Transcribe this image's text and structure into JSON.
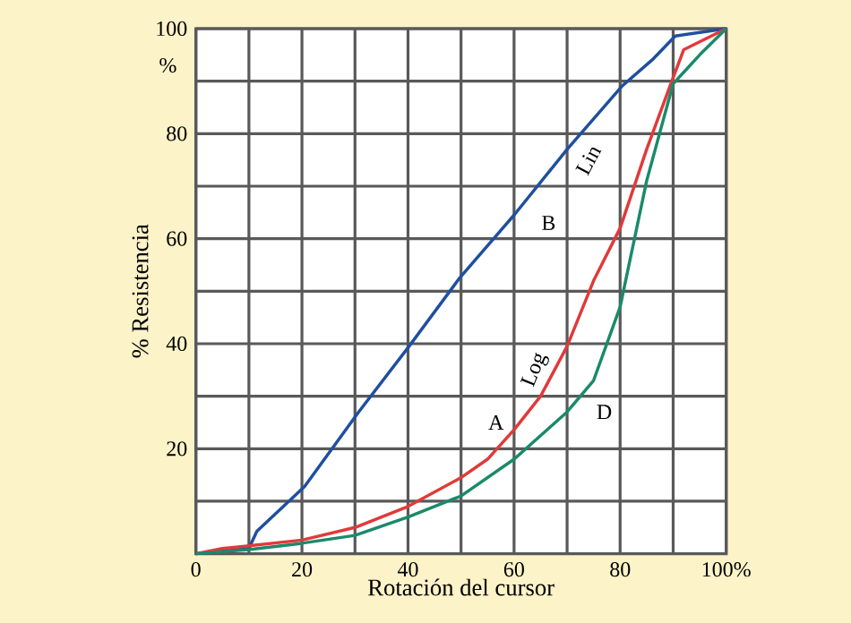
{
  "chart_data": {
    "type": "line",
    "xlabel": "Rotación del cursor",
    "ylabel": "% Resistencia",
    "xlim": [
      0,
      100
    ],
    "ylim": [
      0,
      100
    ],
    "xticks": [
      0,
      {
        "value": 10,
        "label": null
      },
      20,
      {
        "value": 30,
        "label": null
      },
      40,
      {
        "value": 50,
        "label": null
      },
      60,
      {
        "value": 70,
        "label": null
      },
      80,
      {
        "value": 90,
        "label": null
      },
      {
        "value": 100,
        "label": "100%"
      }
    ],
    "yticks": [
      {
        "value": 10,
        "label": null
      },
      20,
      {
        "value": 30,
        "label": null
      },
      40,
      {
        "value": 50,
        "label": null
      },
      60,
      {
        "value": 70,
        "label": null
      },
      80,
      {
        "value": 90,
        "label": null
      },
      100
    ],
    "grid": true,
    "marker": "none",
    "line_style": "solid",
    "legend": false,
    "series": [
      {
        "color": "#1f4f9f",
        "x": [
          0,
          10,
          11.5,
          20.5,
          30.7,
          40.2,
          49.8,
          60,
          70,
          80.3,
          86,
          90.4,
          100
        ],
        "values": [
          0,
          1,
          4.3,
          12.8,
          27,
          39.5,
          52.6,
          64.5,
          77,
          89,
          94,
          98.6,
          100
        ]
      },
      {
        "color": "#e03a3a",
        "x": [
          0,
          5,
          10,
          20,
          30,
          40,
          50,
          55,
          60,
          65,
          70,
          75,
          80,
          85,
          90,
          92,
          100
        ],
        "values": [
          0,
          1,
          1.5,
          2.6,
          5,
          9,
          14.5,
          18,
          23.6,
          30,
          39.5,
          52,
          62,
          77,
          90.7,
          96,
          100
        ]
      },
      {
        "color": "#1a8a6a",
        "x": [
          0,
          10,
          20,
          30,
          40,
          50,
          60,
          70,
          75,
          80,
          85,
          90,
          95,
          100
        ],
        "values": [
          0,
          0.8,
          2,
          3.5,
          7,
          11,
          18,
          27,
          33,
          47,
          71,
          89.5,
          95,
          100
        ]
      }
    ],
    "annotations": [
      "B",
      "Lin",
      "A",
      "Log",
      "D",
      "%"
    ]
  }
}
